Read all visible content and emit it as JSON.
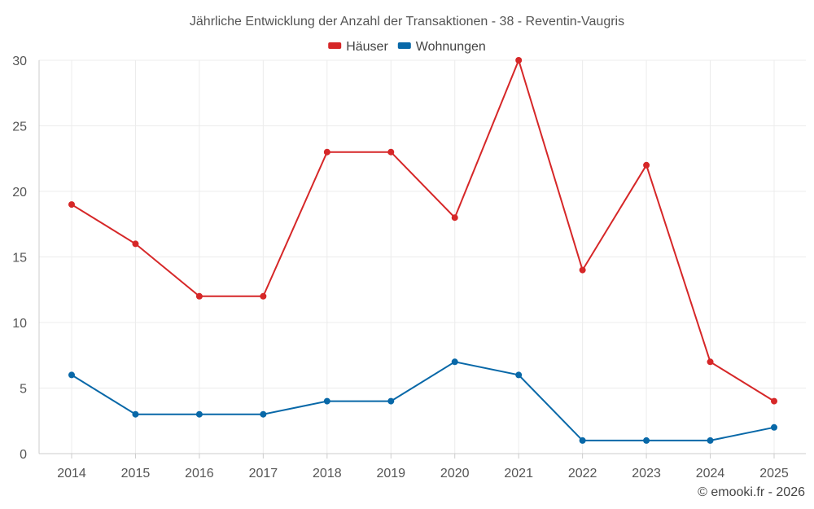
{
  "chart_data": {
    "type": "line",
    "title": "Jährliche Entwicklung der Anzahl der Transaktionen - 38 - Reventin-Vaugris",
    "xlabel": "",
    "ylabel": "",
    "categories": [
      "2014",
      "2015",
      "2016",
      "2017",
      "2018",
      "2019",
      "2020",
      "2021",
      "2022",
      "2023",
      "2024",
      "2025"
    ],
    "ylim": [
      0,
      30
    ],
    "yticks": [
      "0",
      "5",
      "10",
      "15",
      "20",
      "25",
      "30"
    ],
    "grid": true,
    "legend_position": "top-center",
    "series": [
      {
        "name": "Häuser",
        "color": "#d62728",
        "values": [
          19,
          16,
          12,
          12,
          23,
          23,
          18,
          30,
          14,
          22,
          7,
          4
        ]
      },
      {
        "name": "Wohnungen",
        "color": "#0868a8",
        "values": [
          6,
          3,
          3,
          3,
          4,
          4,
          7,
          6,
          1,
          1,
          1,
          2
        ]
      }
    ]
  },
  "footer": {
    "copyright": "© emooki.fr - 2026"
  }
}
